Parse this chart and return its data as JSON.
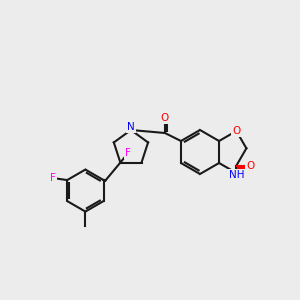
{
  "bg_color": "#ececec",
  "bond_color": "#1a1a1a",
  "bond_lw": 1.5,
  "atom_colors": {
    "F": "#ff00ff",
    "O": "#ff0000",
    "N": "#0000ff",
    "C": "#1a1a1a",
    "H": "#1a1a1a"
  },
  "font_size": 7.5,
  "fig_size": [
    3.0,
    3.0
  ],
  "dpi": 100
}
